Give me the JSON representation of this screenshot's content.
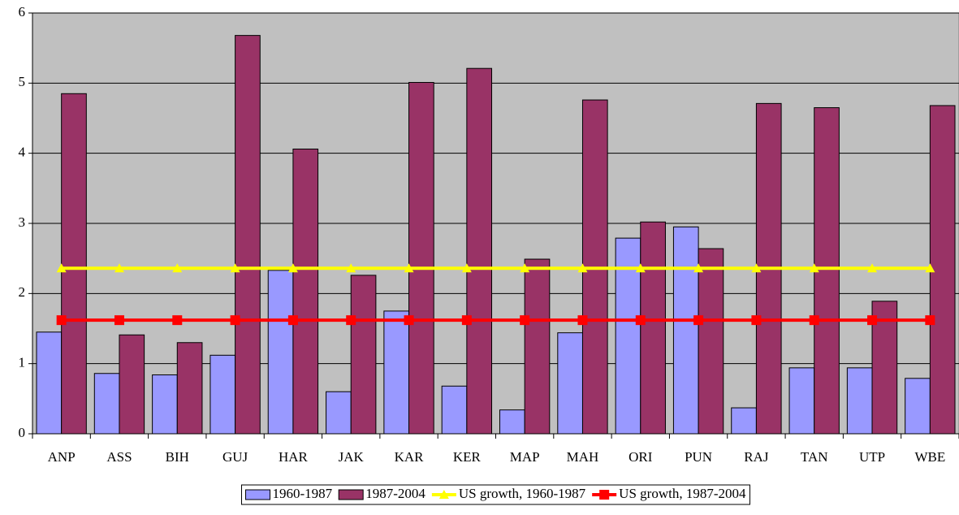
{
  "chart_data": {
    "type": "bar",
    "categories": [
      "ANP",
      "ASS",
      "BIH",
      "GUJ",
      "HAR",
      "JAK",
      "KAR",
      "KER",
      "MAP",
      "MAH",
      "ORI",
      "PUN",
      "RAJ",
      "TAN",
      "UTP",
      "WBE"
    ],
    "series": [
      {
        "name": "1960-1987",
        "type": "bar",
        "color": "#9999ff",
        "values": [
          1.45,
          0.86,
          0.84,
          1.12,
          2.33,
          0.6,
          1.75,
          0.68,
          0.34,
          1.44,
          2.79,
          2.95,
          0.37,
          0.94,
          0.94,
          0.79
        ]
      },
      {
        "name": "1987-2004",
        "type": "bar",
        "color": "#993366",
        "values": [
          4.85,
          1.41,
          1.3,
          5.68,
          4.06,
          2.26,
          5.01,
          5.21,
          2.49,
          4.76,
          3.02,
          2.64,
          4.71,
          4.65,
          1.89,
          4.68
        ]
      },
      {
        "name": "US growth, 1960-1987",
        "type": "line",
        "color": "#ffff00",
        "marker": "triangle",
        "values": [
          2.36,
          2.36,
          2.36,
          2.36,
          2.36,
          2.36,
          2.36,
          2.36,
          2.36,
          2.36,
          2.36,
          2.36,
          2.36,
          2.36,
          2.36,
          2.36
        ]
      },
      {
        "name": "US growth, 1987-2004",
        "type": "line",
        "color": "#ff0000",
        "marker": "square",
        "values": [
          1.62,
          1.62,
          1.62,
          1.62,
          1.62,
          1.62,
          1.62,
          1.62,
          1.62,
          1.62,
          1.62,
          1.62,
          1.62,
          1.62,
          1.62,
          1.62
        ]
      }
    ],
    "ylim": [
      0,
      6
    ],
    "yticks": [
      0,
      1,
      2,
      3,
      4,
      5,
      6
    ],
    "grid": true,
    "legend": "bottom"
  }
}
